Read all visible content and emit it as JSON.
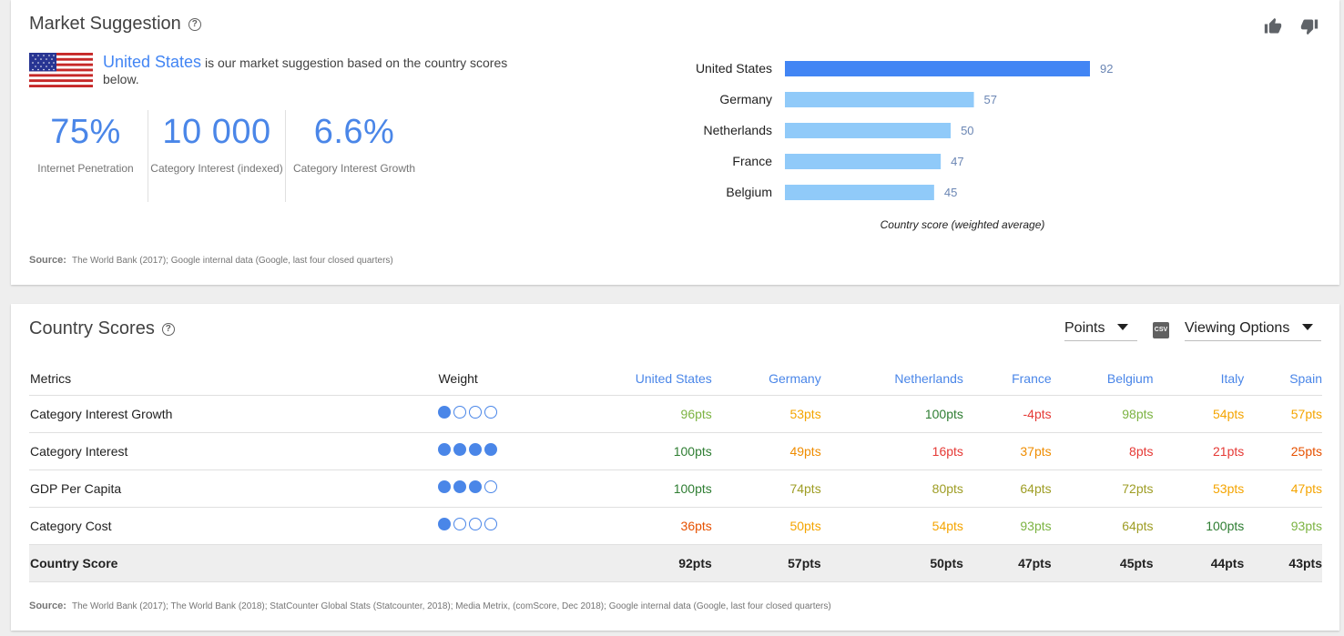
{
  "market": {
    "title": "Market Suggestion",
    "help_icon": "?",
    "suggested_country": "United States",
    "suggestion_text": " is our market suggestion based on the country scores below.",
    "stats": [
      {
        "value": "75%",
        "label": "Internet Penetration"
      },
      {
        "value": "10 000",
        "label": "Category Interest (indexed)"
      },
      {
        "value": "6.6%",
        "label": "Category Interest Growth"
      }
    ],
    "source_label": "Source:",
    "source_text": "The World Bank (2017); Google internal data (Google, last four closed quarters)"
  },
  "chart_data": {
    "type": "bar",
    "orientation": "horizontal",
    "categories": [
      "United States",
      "Germany",
      "Netherlands",
      "France",
      "Belgium"
    ],
    "values": [
      92,
      57,
      50,
      47,
      45
    ],
    "xlabel": "Country score (weighted average)",
    "highlight_color": "#4285f4",
    "bar_color": "#90caf9",
    "xlim": [
      0,
      100
    ]
  },
  "scores": {
    "title": "Country Scores",
    "help_icon": "?",
    "points_dropdown": "Points",
    "csv_icon": "CSV",
    "viewing_options": "Viewing Options",
    "headers": {
      "metrics": "Metrics",
      "weight": "Weight",
      "countries": [
        "United States",
        "Germany",
        "Netherlands",
        "France",
        "Belgium",
        "Italy",
        "Spain"
      ]
    },
    "rows": [
      {
        "metric": "Category Interest Growth",
        "weight": 1,
        "values": [
          "96pts",
          "53pts",
          "100pts",
          "-4pts",
          "98pts",
          "54pts",
          "57pts"
        ],
        "colors": [
          "lg",
          "y",
          "g",
          "r",
          "lg",
          "y",
          "y"
        ]
      },
      {
        "metric": "Category Interest",
        "weight": 4,
        "values": [
          "100pts",
          "49pts",
          "16pts",
          "37pts",
          "8pts",
          "21pts",
          "25pts"
        ],
        "colors": [
          "g",
          "o",
          "r",
          "o",
          "r",
          "r",
          "do"
        ]
      },
      {
        "metric": "GDP Per Capita",
        "weight": 3,
        "values": [
          "100pts",
          "74pts",
          "80pts",
          "64pts",
          "72pts",
          "53pts",
          "47pts"
        ],
        "colors": [
          "g",
          "ol",
          "ol",
          "ol",
          "ol",
          "y",
          "y"
        ]
      },
      {
        "metric": "Category Cost",
        "weight": 1,
        "values": [
          "36pts",
          "50pts",
          "54pts",
          "93pts",
          "64pts",
          "100pts",
          "93pts"
        ],
        "colors": [
          "do",
          "y",
          "y",
          "lg",
          "ol",
          "g",
          "lg"
        ]
      }
    ],
    "total": {
      "metric": "Country Score",
      "values": [
        "92pts",
        "57pts",
        "50pts",
        "47pts",
        "45pts",
        "44pts",
        "43pts"
      ]
    },
    "source_label": "Source:",
    "source_text": "The World Bank (2017); The World Bank (2018); StatCounter Global Stats (Statcounter, 2018); Media Metrix, (comScore, Dec 2018); Google internal data (Google, last four closed quarters)"
  }
}
